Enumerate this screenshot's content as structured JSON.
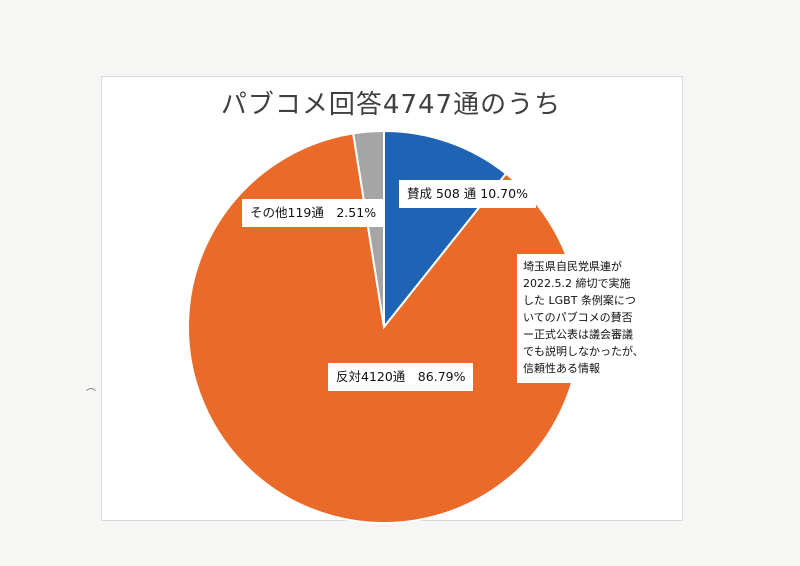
{
  "chart_data": {
    "type": "pie",
    "title": "パブコメ回答4747通のうち",
    "slices": [
      {
        "label": "賛成 508 通 10.70%",
        "value": 10.7,
        "color": "#1f64b4"
      },
      {
        "label": "反対4120通　86.79%",
        "value": 86.79,
        "color": "#ea6a2a"
      },
      {
        "label": "その他119通　2.51%",
        "value": 2.51,
        "color": "#a5a5a5"
      }
    ],
    "start_angle_deg": 0,
    "direction": "clockwise",
    "annotation_lines": [
      "埼玉県自民党県連が",
      "2022.5.2  締切で実施",
      "した LGBT 条例案につ",
      "いてのパブコメの賛否",
      "ー正式公表は議会審議",
      "でも説明しなかったが、",
      "信頼性ある情報"
    ]
  }
}
